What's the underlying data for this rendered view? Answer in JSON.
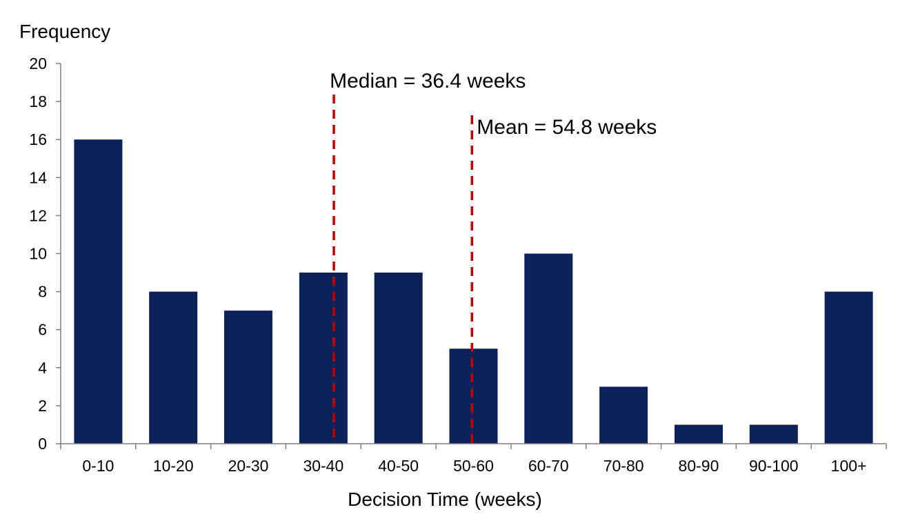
{
  "chart_data": {
    "type": "bar",
    "ylabel": "Frequency",
    "xlabel": "Decision Time (weeks)",
    "categories": [
      "0-10",
      "10-20",
      "20-30",
      "30-40",
      "40-50",
      "50-60",
      "60-70",
      "70-80",
      "80-90",
      "90-100",
      "100+"
    ],
    "values": [
      16,
      8,
      7,
      9,
      9,
      5,
      10,
      3,
      1,
      1,
      8
    ],
    "ylim": [
      0,
      20
    ],
    "yticks": [
      0,
      2,
      4,
      6,
      8,
      10,
      12,
      14,
      16,
      18,
      20
    ],
    "grid": false,
    "legend": "none",
    "bar_color": "#0d215b",
    "annotations": [
      {
        "name": "median",
        "label": "Median = 36.4 weeks",
        "x": 36.4,
        "color": "#c00000",
        "style": "dashed"
      },
      {
        "name": "mean",
        "label": "Mean = 54.8 weeks",
        "x": 54.8,
        "color": "#c00000",
        "style": "dashed"
      }
    ]
  }
}
